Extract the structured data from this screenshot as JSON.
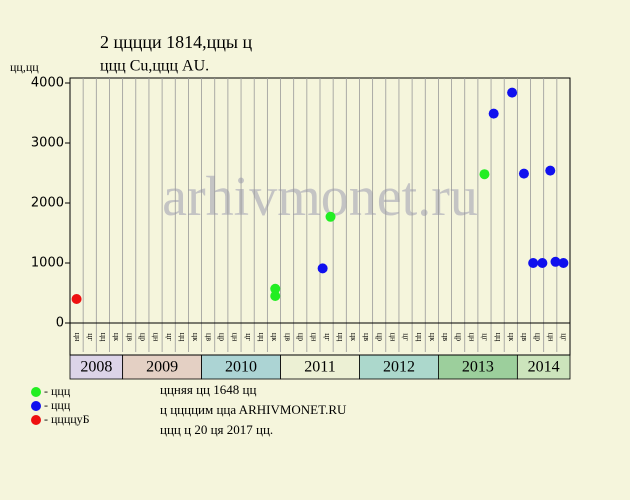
{
  "chart_data": {
    "type": "scatter",
    "title": "2 цццци 1814,ццы ц",
    "subtitle": "ццц Cu,ццц AU.",
    "y_label": "цц,цц",
    "watermark": "arhivmonet.ru",
    "periods": [
      {
        "year": "2008",
        "color": "#dcd4e8",
        "months": [
          "цн",
          "цг",
          "цц",
          "цк"
        ]
      },
      {
        "year": "2009",
        "color": "#e4d0c4",
        "months": [
          "цв",
          "цр",
          "цн",
          "цг",
          "цц",
          "цк"
        ]
      },
      {
        "year": "2010",
        "color": "#acd4d4",
        "months": [
          "цв",
          "цр",
          "цн",
          "цг",
          "цц",
          "цк"
        ]
      },
      {
        "year": "2011",
        "color": "#ecf0d4",
        "months": [
          "цв",
          "цр",
          "цн",
          "цг",
          "цц",
          "цк"
        ]
      },
      {
        "year": "2012",
        "color": "#acd8cc",
        "months": [
          "цв",
          "цр",
          "цн",
          "цг",
          "цц",
          "цк"
        ]
      },
      {
        "year": "2013",
        "color": "#9ccf9c",
        "months": [
          "цв",
          "цр",
          "цн",
          "цг",
          "цц",
          "цк"
        ]
      },
      {
        "year": "2014",
        "color": "#cce4bc",
        "months": [
          "цв",
          "цр",
          "цн",
          "цг"
        ]
      }
    ],
    "series": [
      {
        "name": "- ццц",
        "color": "#22ee22",
        "x": [
          15.6,
          15.6,
          19.8,
          31.5
        ],
        "values": [
          450,
          570,
          1770,
          2480
        ]
      },
      {
        "name": "- ццц",
        "color": "#1010ee",
        "x": [
          19.2,
          32.2,
          33.6,
          34.5,
          35.2,
          35.9,
          36.5,
          36.9,
          37.5
        ],
        "values": [
          910,
          3490,
          3840,
          2490,
          1000,
          1000,
          2540,
          1020,
          1000
        ]
      },
      {
        "name": "- ццццуБ",
        "color": "#ee1010",
        "x": [
          0.5
        ],
        "values": [
          400
        ]
      }
    ],
    "xlim": [
      0,
      38
    ],
    "ylim": [
      0,
      4000
    ],
    "yticks": [
      0,
      1000,
      2000,
      3000,
      4000
    ],
    "notes": [
      "ццняя цц 1648 цц",
      "ц ццццим ццa ARHIVMONET.RU",
      "ццц ц 20 ця 2017 цц."
    ]
  }
}
